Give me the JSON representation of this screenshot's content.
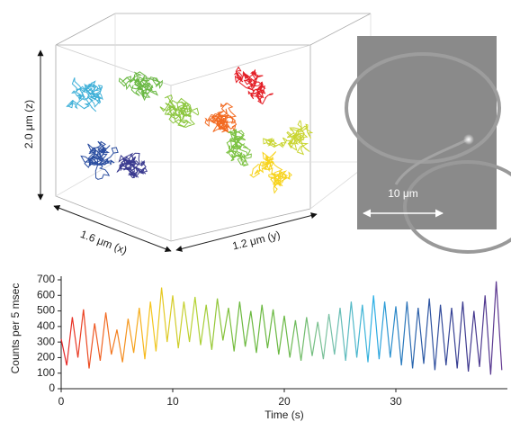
{
  "trajectory": {
    "z_label": "2.0 μm (z)",
    "x_label": "1.6 μm (x)",
    "y_label": "1.2 μm (y)"
  },
  "micrograph": {
    "scale_bar": "10 μm"
  },
  "chart_data": {
    "type": "line",
    "xlabel": "Time (s)",
    "ylabel": "Counts per 5 msec",
    "x": [
      0,
      0.5,
      1,
      1.5,
      2,
      2.5,
      3,
      3.5,
      4,
      4.5,
      5,
      5.5,
      6,
      6.5,
      7,
      7.5,
      8,
      8.5,
      9,
      9.5,
      10,
      10.5,
      11,
      11.5,
      12,
      12.5,
      13,
      13.5,
      14,
      14.5,
      15,
      15.5,
      16,
      16.5,
      17,
      17.5,
      18,
      18.5,
      19,
      19.5,
      20,
      20.5,
      21,
      21.5,
      22,
      22.5,
      23,
      23.5,
      24,
      24.5,
      25,
      25.5,
      26,
      26.5,
      27,
      27.5,
      28,
      28.5,
      29,
      29.5,
      30,
      30.5,
      31,
      31.5,
      32,
      32.5,
      33,
      33.5,
      34,
      34.5,
      35,
      35.5,
      36,
      36.5,
      37,
      37.5,
      38,
      38.5,
      39,
      39.5
    ],
    "values": [
      320,
      150,
      460,
      200,
      510,
      130,
      420,
      180,
      490,
      220,
      380,
      170,
      450,
      230,
      520,
      190,
      560,
      240,
      650,
      300,
      600,
      260,
      560,
      300,
      590,
      280,
      540,
      250,
      580,
      310,
      520,
      240,
      560,
      270,
      500,
      230,
      540,
      260,
      510,
      220,
      470,
      200,
      440,
      180,
      460,
      210,
      430,
      190,
      480,
      220,
      520,
      180,
      560,
      200,
      540,
      170,
      600,
      190,
      560,
      200,
      530,
      150,
      560,
      130,
      520,
      160,
      580,
      120,
      540,
      150,
      520,
      130,
      560,
      110,
      500,
      140,
      600,
      90,
      690,
      120
    ],
    "colors": [
      "#e41e26",
      "#f26a21",
      "#f7c51c",
      "#b5d334",
      "#6cb93f",
      "#69b842",
      "#7cc2a5",
      "#2cb0e6",
      "#2b5ea8",
      "#3a3a8f",
      "#6b3a92"
    ],
    "xlim": [
      0,
      40
    ],
    "xticks": [
      0,
      10,
      20,
      30
    ],
    "ylim": [
      0,
      700
    ],
    "yticks": [
      0,
      100,
      200,
      300,
      400,
      500,
      600,
      700
    ]
  }
}
